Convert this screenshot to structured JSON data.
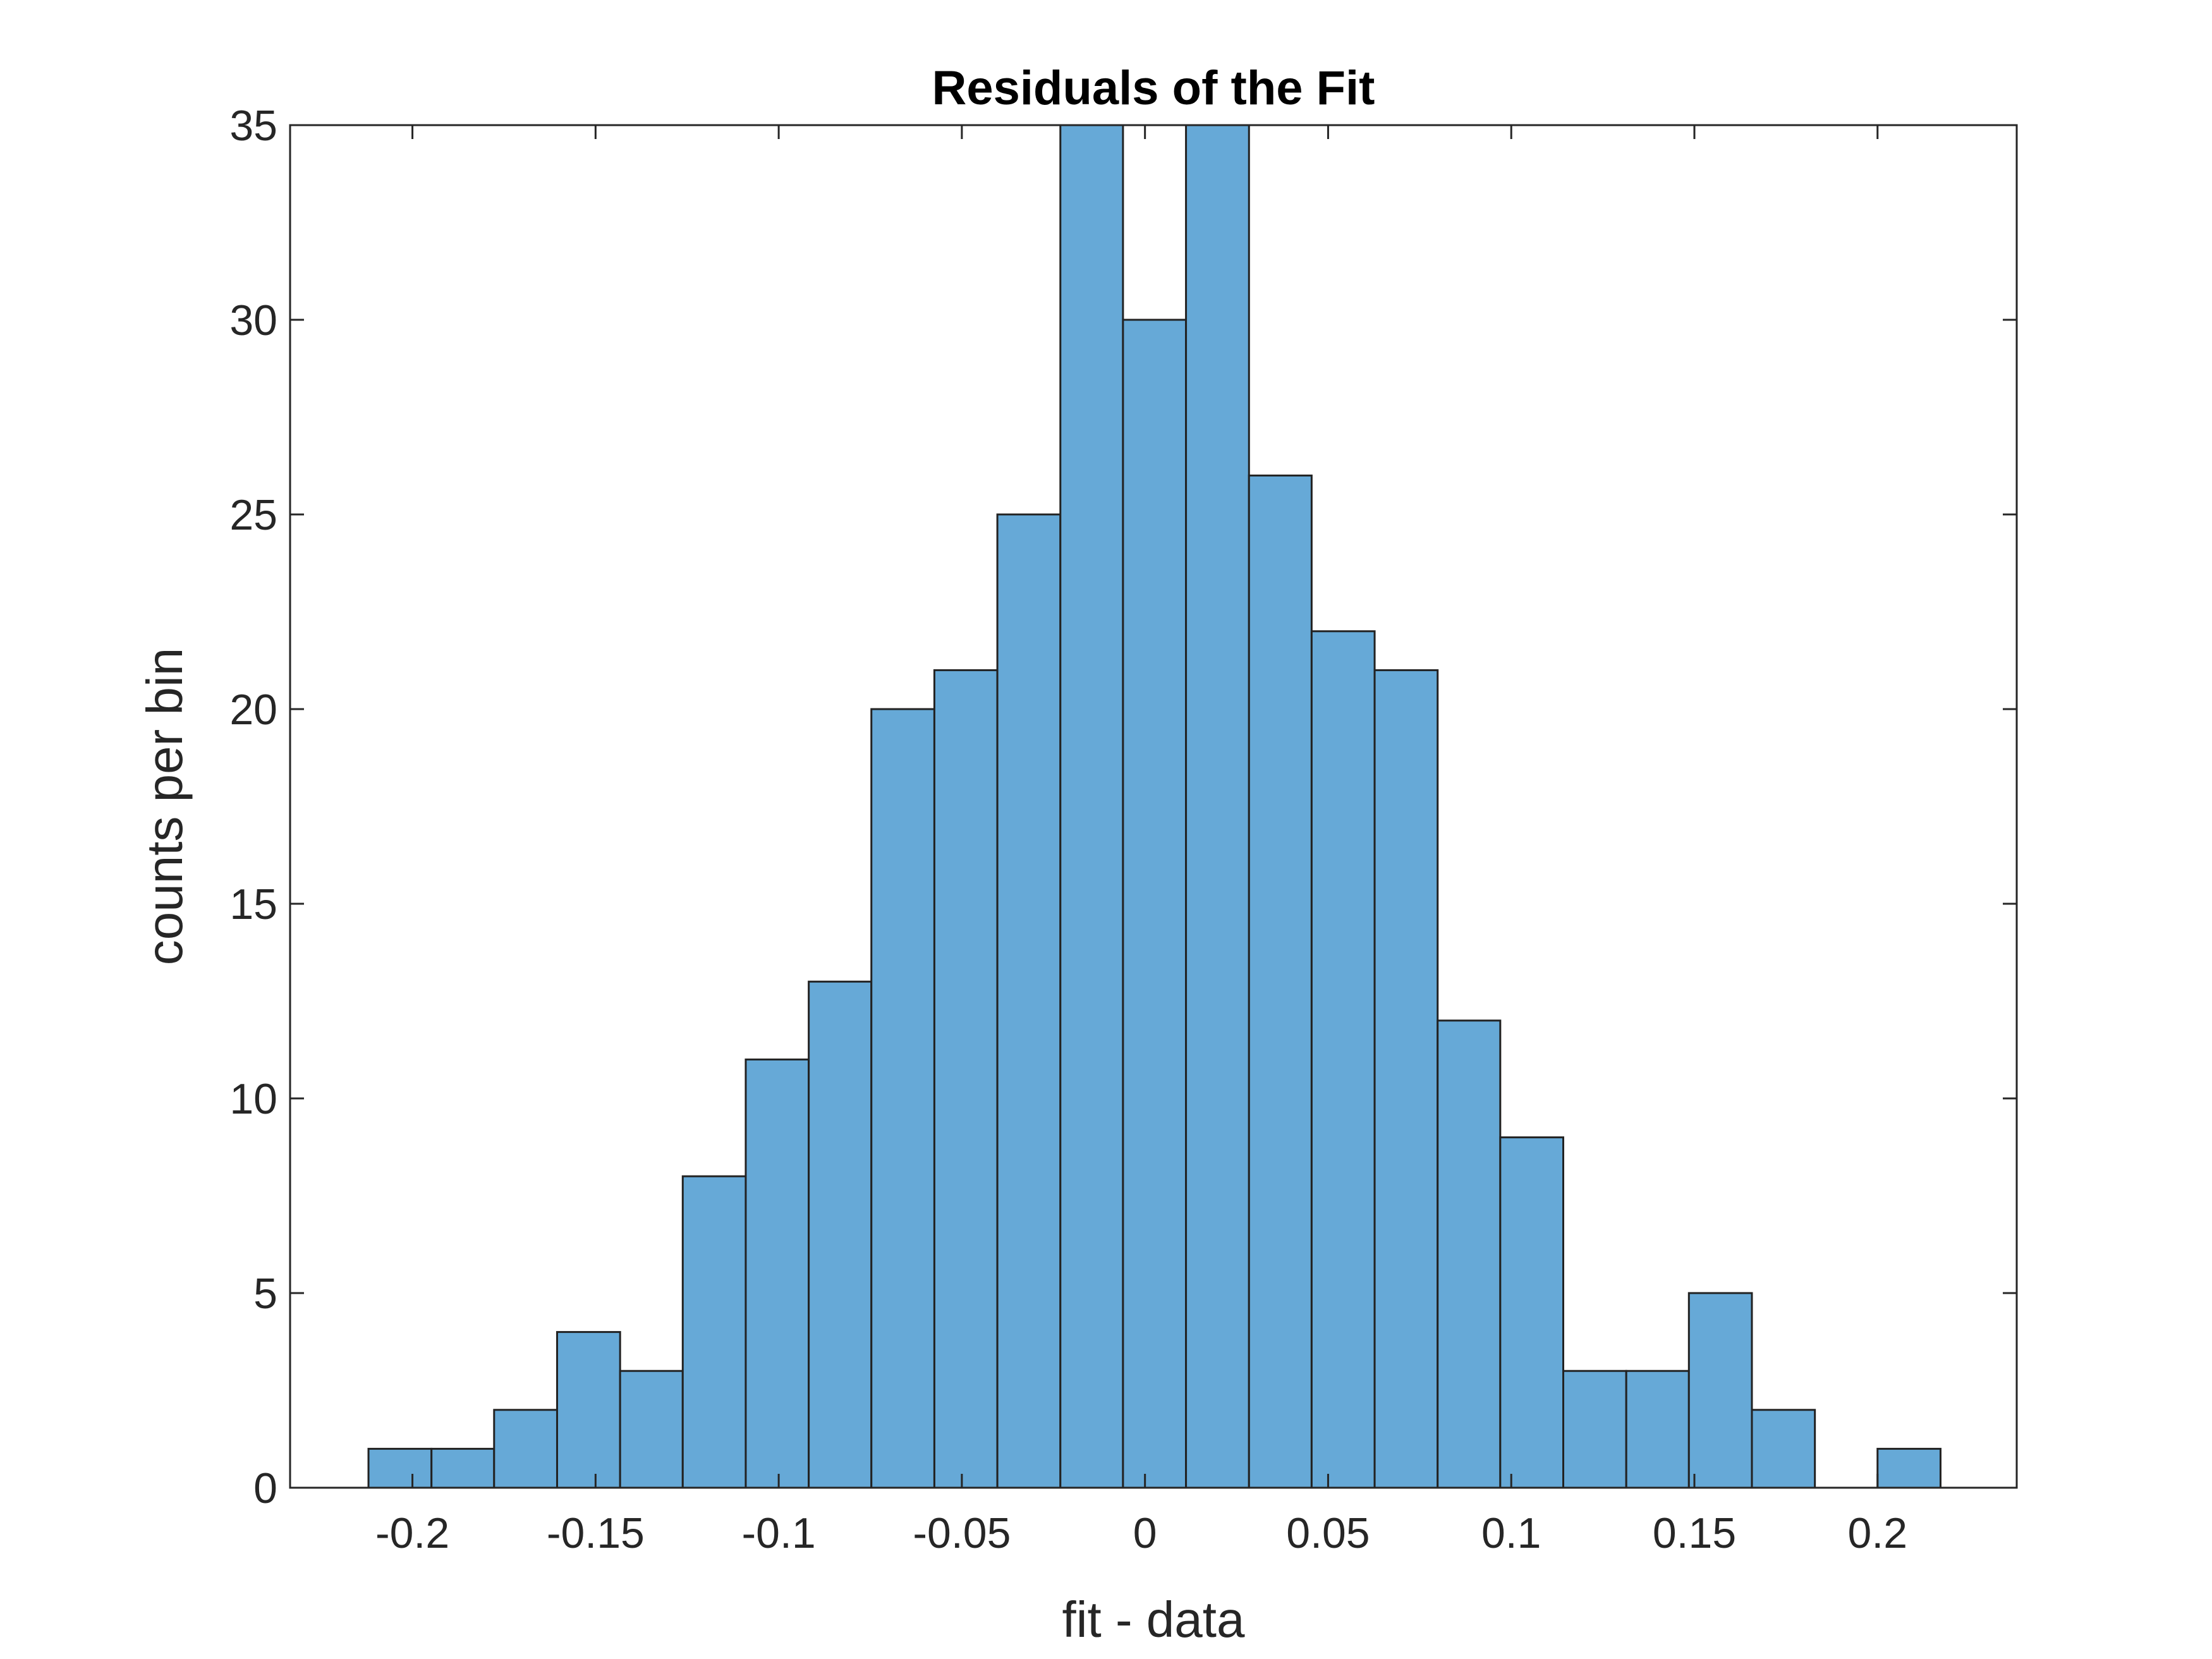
{
  "chart_data": {
    "type": "histogram",
    "title": "Residuals of the Fit",
    "x_label": "fit - data",
    "y_label": "counts per bin",
    "bins": [
      -0.212,
      -0.1948,
      -0.1777,
      -0.1605,
      -0.1433,
      -0.1262,
      -0.109,
      -0.0918,
      -0.0747,
      -0.0575,
      -0.0403,
      -0.0231,
      -0.006,
      0.0112,
      0.0284,
      0.0455,
      0.0627,
      0.0799,
      0.097,
      0.1142,
      0.1314,
      0.1485,
      0.1657,
      0.1829,
      0.2,
      0.2172
    ],
    "values": [
      1,
      1,
      2,
      4,
      3,
      8,
      11,
      13,
      20,
      21,
      25,
      35,
      30,
      35,
      26,
      22,
      21,
      12,
      9,
      3,
      3,
      5,
      2,
      0,
      1
    ],
    "color": "#66a9d7",
    "edge_color": "#222222",
    "xlim": [
      -0.2334,
      0.238
    ],
    "xticks": [
      -0.2,
      -0.15,
      -0.1,
      -0.05,
      0,
      0.05,
      0.1,
      0.15,
      0.2
    ],
    "ylim": [
      0,
      35
    ],
    "yticks": [
      0,
      5,
      10,
      15,
      20,
      25,
      30,
      35
    ],
    "grid": false
  }
}
